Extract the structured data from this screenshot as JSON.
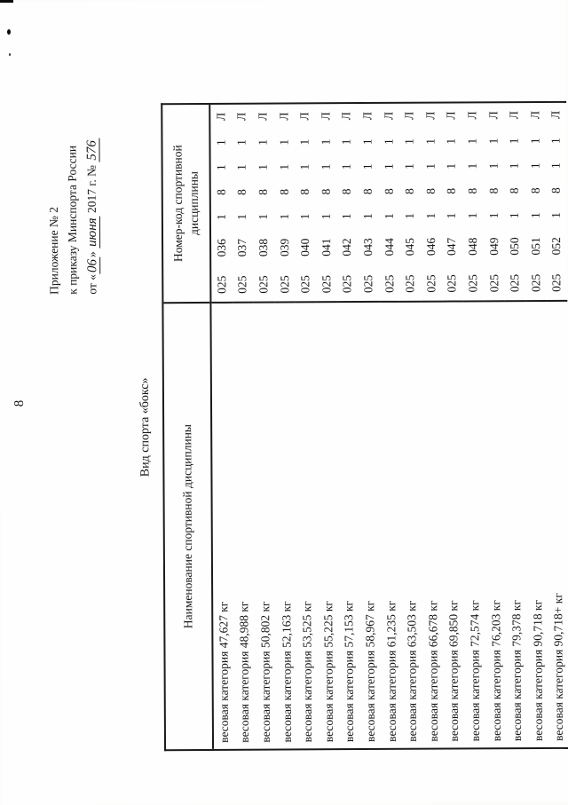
{
  "page_number": "8",
  "appendix": {
    "line1": "Приложение № 2",
    "line2": "к приказу Минспорта России",
    "date_prefix": "от «",
    "date_day": "06",
    "date_close": "»",
    "date_month": "июня",
    "date_suffix": "2017 г. №",
    "order_number": "576"
  },
  "table": {
    "caption": "Вид спорта «бокс»",
    "columns": [
      "Наименование спортивной дисциплины",
      "Номер-код спортивной дисциплины"
    ],
    "rows": [
      {
        "name": "весовая категория 47,627 кг",
        "code": "025 036 1 8 1 1 Л"
      },
      {
        "name": "весовая категория 48,988 кг",
        "code": "025 037 1 8 1 1 Л"
      },
      {
        "name": "весовая категория 50,802 кг",
        "code": "025 038 1 8 1 1 Л"
      },
      {
        "name": "весовая категория 52,163 кг",
        "code": "025 039 1 8 1 1 Л"
      },
      {
        "name": "весовая категория 53,525 кг",
        "code": "025 040 1 8 1 1 Л"
      },
      {
        "name": "весовая категория 55,225 кг",
        "code": "025 041 1 8 1 1 Л"
      },
      {
        "name": "весовая категория 57,153 кг",
        "code": "025 042 1 8 1 1 Л"
      },
      {
        "name": "весовая категория 58,967 кг",
        "code": "025 043 1 8 1 1 Л"
      },
      {
        "name": "весовая категория 61,235 кг",
        "code": "025 044 1 8 1 1 Л"
      },
      {
        "name": "весовая категория 63,503 кг",
        "code": "025 045 1 8 1 1 Л"
      },
      {
        "name": "весовая категория 66,678 кг",
        "code": "025 046 1 8 1 1 Л"
      },
      {
        "name": "весовая категория 69,850 кг",
        "code": "025 047 1 8 1 1 Л"
      },
      {
        "name": "весовая категория 72,574 кг",
        "code": "025 048 1 8 1 1 Л"
      },
      {
        "name": "весовая категория 76,203 кг",
        "code": "025 049 1 8 1 1 Л"
      },
      {
        "name": "весовая категория 79,378 кг",
        "code": "025 050 1 8 1 1 Л"
      },
      {
        "name": "весовая категория 90,718 кг",
        "code": "025 051 1 8 1 1 Л"
      },
      {
        "name": "весовая категория 90,718+ кг",
        "code": "025 052 1 8 1 1 Л"
      }
    ]
  }
}
